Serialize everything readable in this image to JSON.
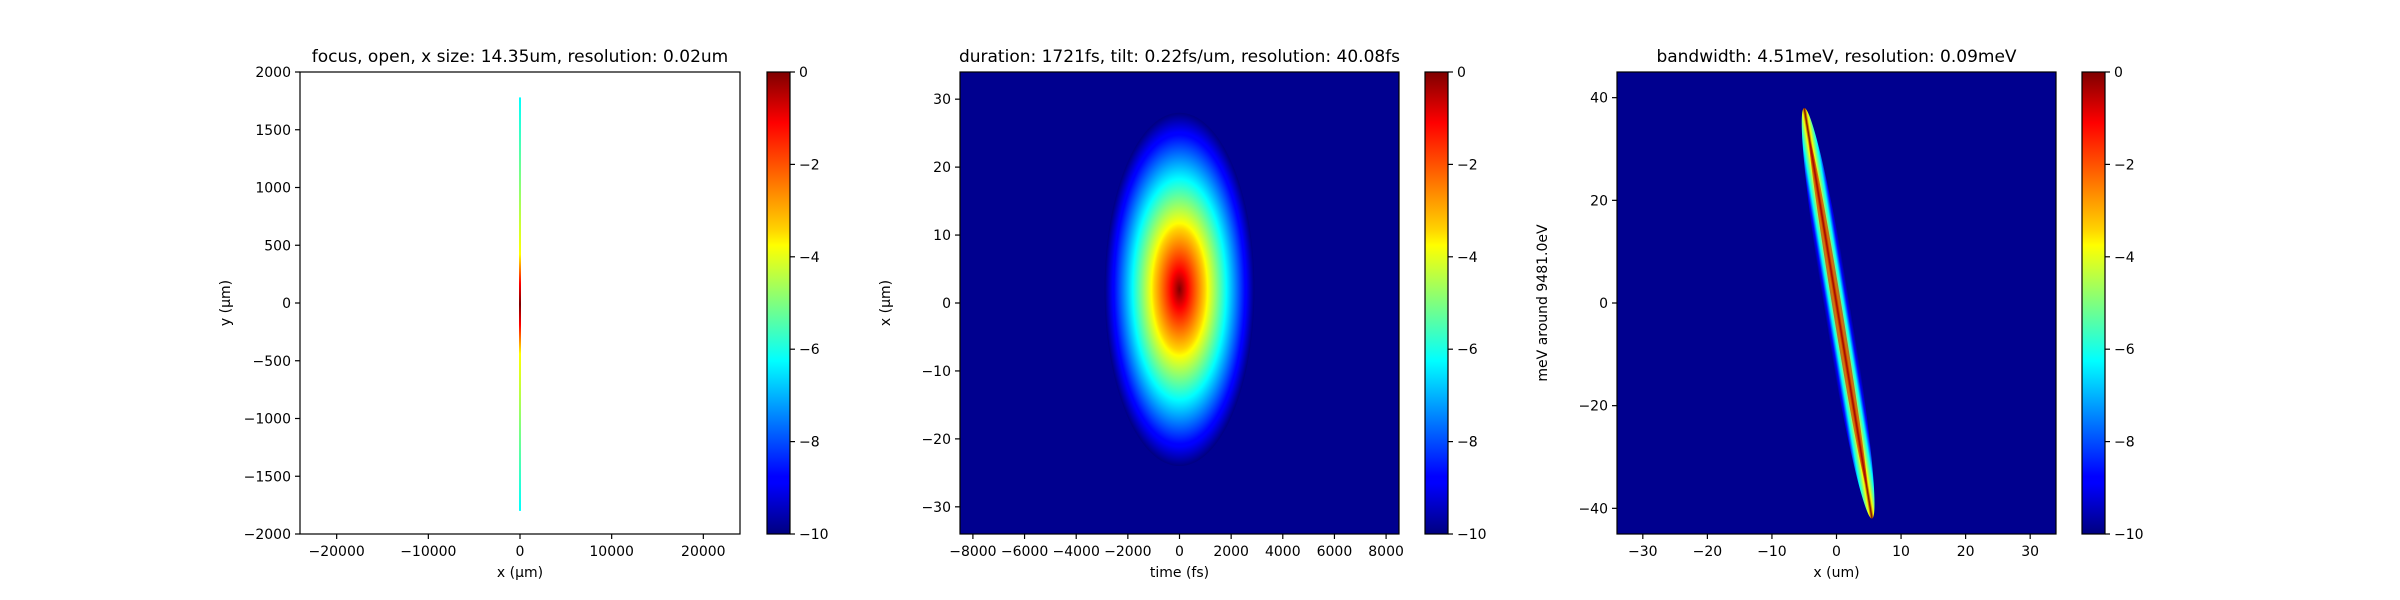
{
  "chart_data": [
    {
      "type": "heatmap",
      "title": "focus, open, x size: 14.35um, resolution: 0.02um",
      "xlabel": "x (μm)",
      "ylabel": "y (μm)",
      "xlim": [
        -24000,
        24000
      ],
      "ylim": [
        -2000,
        2000
      ],
      "xticks": [
        -20000,
        -10000,
        0,
        10000,
        20000
      ],
      "yticks": [
        -2000,
        -1500,
        -1000,
        -500,
        0,
        500,
        1000,
        1500,
        2000
      ],
      "colorbar": {
        "range": [
          -10,
          0
        ],
        "ticks": [
          -10,
          -8,
          -6,
          -4,
          -2,
          0
        ],
        "colormap": "jet"
      },
      "background": "white",
      "feature": {
        "shape": "vertical line",
        "x_center": 0,
        "y_extent": [
          -1800,
          1780
        ],
        "peak_value": 0,
        "peak_y": 0
      }
    },
    {
      "type": "heatmap",
      "title": "duration: 1721fs, tilt: 0.22fs/um, resolution: 40.08fs",
      "xlabel": "time (fs)",
      "ylabel": "x (μm)",
      "xlim": [
        -8500,
        8500
      ],
      "ylim": [
        -34,
        34
      ],
      "xticks": [
        -8000,
        -6000,
        -4000,
        -2000,
        0,
        2000,
        4000,
        6000,
        8000
      ],
      "yticks": [
        -30,
        -20,
        -10,
        0,
        10,
        20,
        30
      ],
      "colorbar": {
        "range": [
          -10,
          0
        ],
        "ticks": [
          -10,
          -8,
          -6,
          -4,
          -2,
          0
        ],
        "colormap": "jet"
      },
      "background": "#00008F",
      "feature": {
        "shape": "ellipse",
        "center": [
          0,
          2
        ],
        "half_width_at_min": 2900,
        "half_height_at_min": 26,
        "peak_value": 0
      }
    },
    {
      "type": "heatmap",
      "title": "bandwidth: 4.51meV, resolution: 0.09meV",
      "xlabel": "x (um)",
      "ylabel": "meV around 9481.0eV",
      "xlim": [
        -34,
        34
      ],
      "ylim": [
        -45,
        45
      ],
      "xticks": [
        -30,
        -20,
        -10,
        0,
        10,
        20,
        30
      ],
      "yticks": [
        -40,
        -20,
        0,
        20,
        40
      ],
      "colorbar": {
        "range": [
          -10,
          0
        ],
        "ticks": [
          -10,
          -8,
          -6,
          -4,
          -2,
          0
        ],
        "colormap": "jet"
      },
      "background": "#00008F",
      "feature": {
        "shape": "tilted streak",
        "endpoints": [
          [
            -5,
            38
          ],
          [
            5.5,
            -42
          ]
        ],
        "half_width": 1.3,
        "peak_value": 0
      }
    }
  ]
}
